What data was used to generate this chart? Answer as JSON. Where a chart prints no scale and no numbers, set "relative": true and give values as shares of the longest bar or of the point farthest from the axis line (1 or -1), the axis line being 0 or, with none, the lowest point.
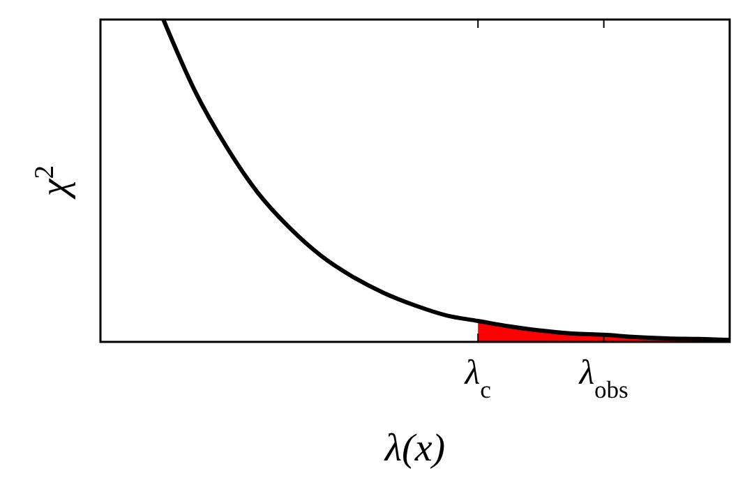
{
  "chart_data": {
    "type": "line",
    "relative": true,
    "xlabel": "λ(x)",
    "ylabel": "χ$^{2}$",
    "categories": [
      null,
      null,
      null,
      null,
      null,
      null,
      null,
      null,
      null,
      null,
      null,
      null,
      "λ$_{c}$",
      null,
      null,
      null,
      "λ$_{obs}$",
      null,
      null,
      null,
      null
    ],
    "series": [
      {
        "type": "area",
        "color": "#ff0000",
        "values": [
          null,
          null,
          null,
          null,
          null,
          null,
          null,
          null,
          null,
          null,
          null,
          null,
          0.065,
          0.048,
          0.035,
          0.026,
          0.022,
          0.015,
          0.011,
          0.009,
          0.006
        ]
      },
      {
        "color": "#000000",
        "values": [
          null,
          null,
          1.0,
          0.779,
          0.606,
          0.463,
          0.355,
          0.268,
          0.203,
          0.152,
          0.113,
          0.082,
          0.065,
          0.048,
          0.035,
          0.026,
          0.022,
          0.015,
          0.011,
          0.009,
          0.006
        ]
      }
    ]
  }
}
